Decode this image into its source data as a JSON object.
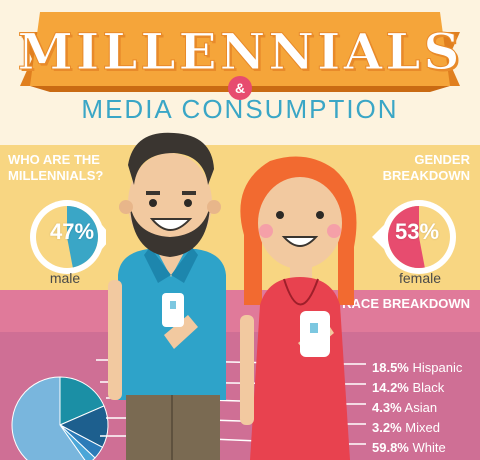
{
  "title": "MILLENNIALS",
  "ampersand": "&",
  "subtitle": "MEDIA CONSUMPTION",
  "who_heading": "WHO ARE THE MILLENNIALS?",
  "gender_heading": "GENDER BREAKDOWN",
  "race_heading": "RACE BREAKDOWN",
  "male": {
    "percent_label": "47%",
    "value": 47,
    "label": "male"
  },
  "female": {
    "percent_label": "53%",
    "value": 53,
    "label": "female"
  },
  "race": [
    {
      "value": "18.5%",
      "name": "Hispanic",
      "color": "#1b8fa5"
    },
    {
      "value": "14.2%",
      "name": "Black",
      "color": "#1d5f8e"
    },
    {
      "value": "4.3%",
      "name": "Asian",
      "color": "#2b7bb8"
    },
    {
      "value": "3.2%",
      "name": "Mixed",
      "color": "#4aa6d8"
    },
    {
      "value": "59.8%",
      "name": "White",
      "color": "#79b6dd"
    }
  ],
  "colors": {
    "orange": "#f39a2b",
    "blue": "#3aa6c6",
    "pink": "#cf6f95",
    "yellow": "#f8d682",
    "red": "#e74c6f"
  },
  "icons": [
    "bearded-man-illustration",
    "redhead-woman-illustration",
    "smartphone-icon"
  ]
}
